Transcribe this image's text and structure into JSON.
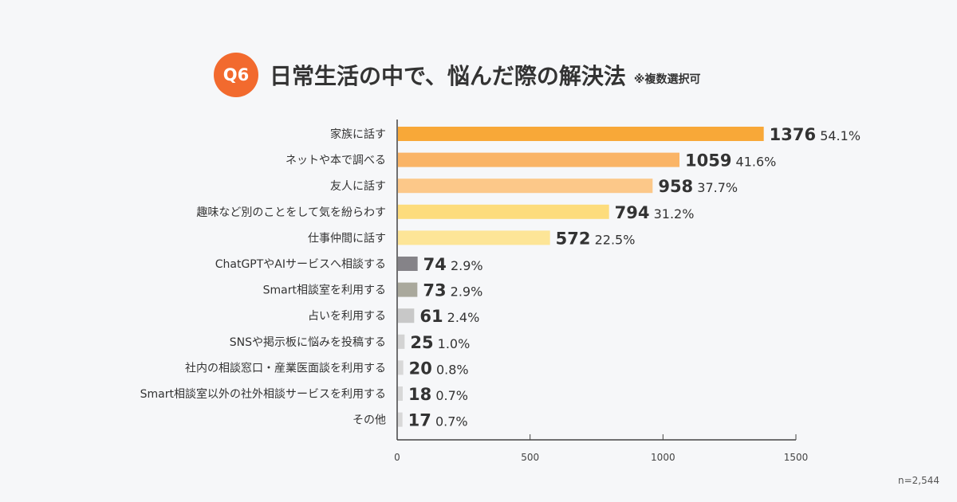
{
  "title": {
    "badge": "Q6",
    "text": "日常生活の中で、悩んだ際の解決法",
    "note": "※複数選択可"
  },
  "sample": "n=2,544",
  "chart_data": {
    "type": "bar",
    "orientation": "horizontal",
    "categories": [
      "家族に話す",
      "ネットや本で調べる",
      "友人に話す",
      "趣味など別のことをして気を紛らわす",
      "仕事仲間に話す",
      "ChatGPTやAIサービスへ相談する",
      "Smart相談室を利用する",
      "占いを利用する",
      "SNSや掲示板に悩みを投稿する",
      "社内の相談窓口・産業医面談を利用する",
      "Smart相談室以外の社外相談サービスを利用する",
      "その他"
    ],
    "values": [
      1376,
      1059,
      958,
      794,
      572,
      74,
      73,
      61,
      25,
      20,
      18,
      17
    ],
    "percent_labels": [
      "54.1%",
      "41.6%",
      "37.7%",
      "31.2%",
      "22.5%",
      "2.9%",
      "2.9%",
      "2.4%",
      "1.0%",
      "0.8%",
      "0.7%",
      "0.7%"
    ],
    "colors": [
      "#f8a838",
      "#fab466",
      "#fcc889",
      "#fddc7c",
      "#fde597",
      "#858388",
      "#a9a89c",
      "#c8c8c8",
      "#d3d3d3",
      "#d8d8d8",
      "#d8d8d8",
      "#d8d8d8"
    ],
    "xlim": [
      0,
      1500
    ],
    "xticks": [
      0,
      500,
      1000,
      1500
    ],
    "grid": false
  }
}
